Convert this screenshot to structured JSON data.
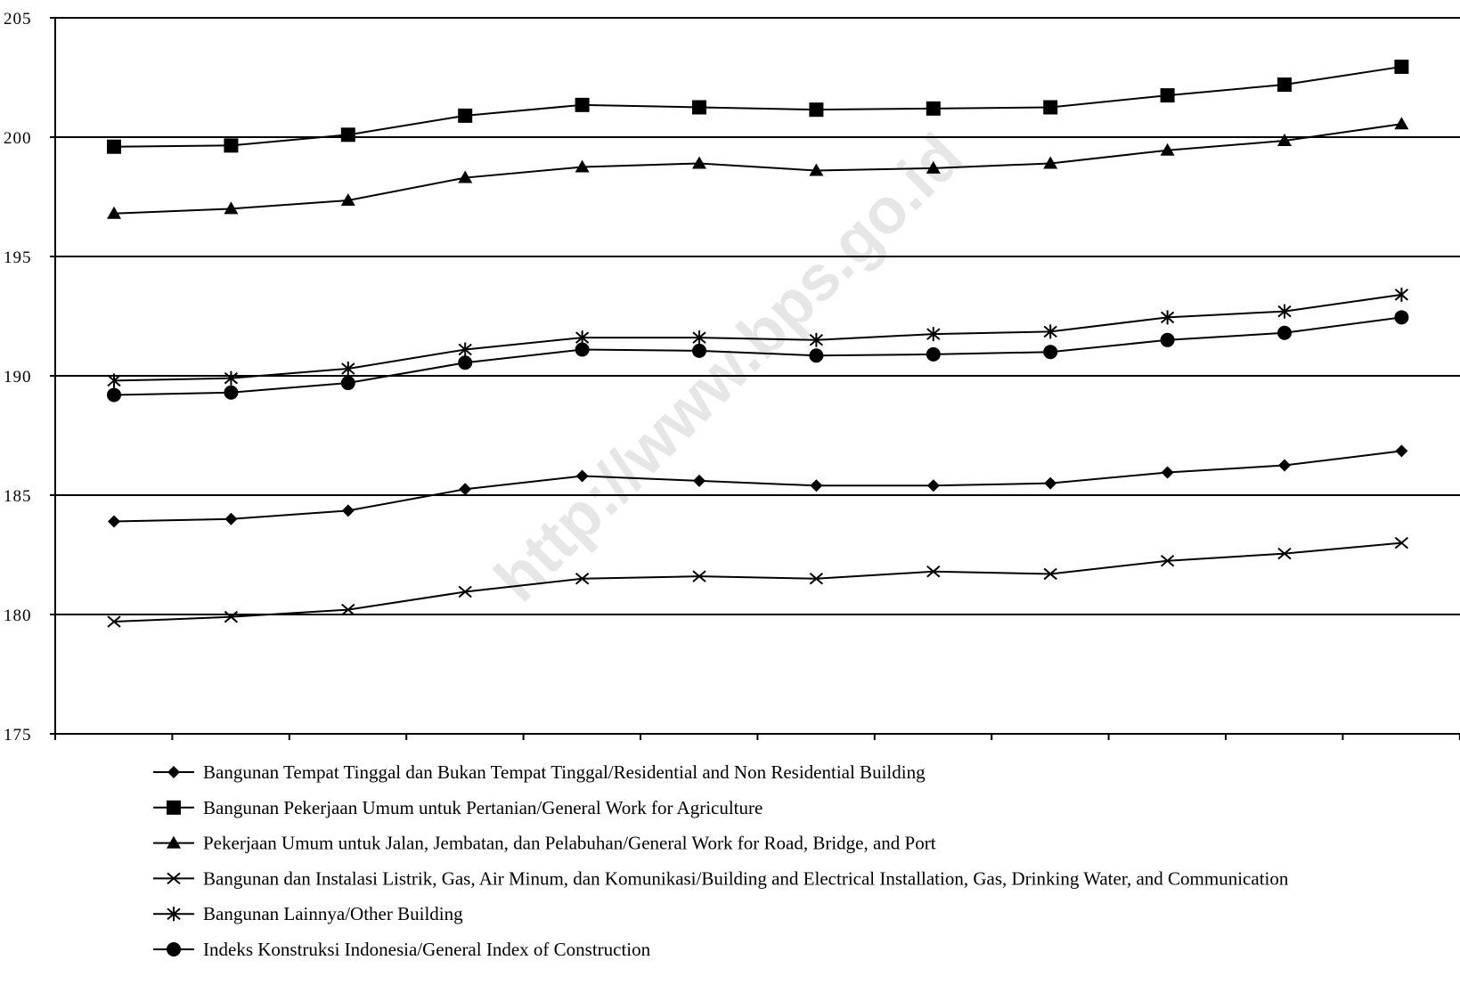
{
  "watermark": "http://www.bps.go.id",
  "chart_data": {
    "type": "line",
    "title": "",
    "xlabel": "",
    "ylabel": "",
    "ylim": [
      175,
      205
    ],
    "yticks": [
      175,
      180,
      185,
      190,
      195,
      200,
      205
    ],
    "ytick_labels": [
      "175",
      "180",
      "185",
      "190",
      "195",
      "200",
      "205"
    ],
    "grid": "horizontal",
    "legend_position": "bottom",
    "x": [
      1,
      2,
      3,
      4,
      5,
      6,
      7,
      8,
      9,
      10,
      11,
      12
    ],
    "series": [
      {
        "name": "Bangunan Tempat Tinggal dan Bukan Tempat Tinggal/Residential and Non Residential Building",
        "marker": "diamond",
        "values": [
          183.9,
          184.0,
          184.35,
          185.25,
          185.8,
          185.6,
          185.4,
          185.4,
          185.5,
          185.95,
          186.25,
          186.85
        ]
      },
      {
        "name": "Bangunan Pekerjaan Umum untuk Pertanian/General Work for Agriculture",
        "marker": "square",
        "values": [
          199.6,
          199.65,
          200.1,
          200.9,
          201.35,
          201.25,
          201.15,
          201.2,
          201.25,
          201.75,
          202.2,
          202.95
        ]
      },
      {
        "name": "Pekerjaan Umum untuk  Jalan, Jembatan, dan Pelabuhan/General Work for Road, Bridge, and Port",
        "marker": "triangle",
        "values": [
          196.8,
          197.0,
          197.35,
          198.3,
          198.75,
          198.9,
          198.6,
          198.7,
          198.9,
          199.45,
          199.85,
          200.55
        ]
      },
      {
        "name": "Bangunan dan Instalasi Listrik, Gas, Air Minum, dan Komunikasi/Building and Electrical Installation, Gas, Drinking Water, and Communication",
        "marker": "x",
        "values": [
          179.7,
          179.9,
          180.2,
          180.95,
          181.5,
          181.6,
          181.5,
          181.8,
          181.7,
          182.25,
          182.55,
          183.0
        ]
      },
      {
        "name": "Bangunan Lainnya/Other Building",
        "marker": "asterisk",
        "values": [
          189.8,
          189.9,
          190.3,
          191.1,
          191.6,
          191.6,
          191.5,
          191.75,
          191.85,
          192.45,
          192.7,
          193.4
        ]
      },
      {
        "name": "Indeks Konstruksi Indonesia/General Index of Construction",
        "marker": "circle",
        "values": [
          189.2,
          189.3,
          189.7,
          190.55,
          191.1,
          191.05,
          190.85,
          190.9,
          191.0,
          191.5,
          191.8,
          192.45
        ]
      }
    ]
  }
}
